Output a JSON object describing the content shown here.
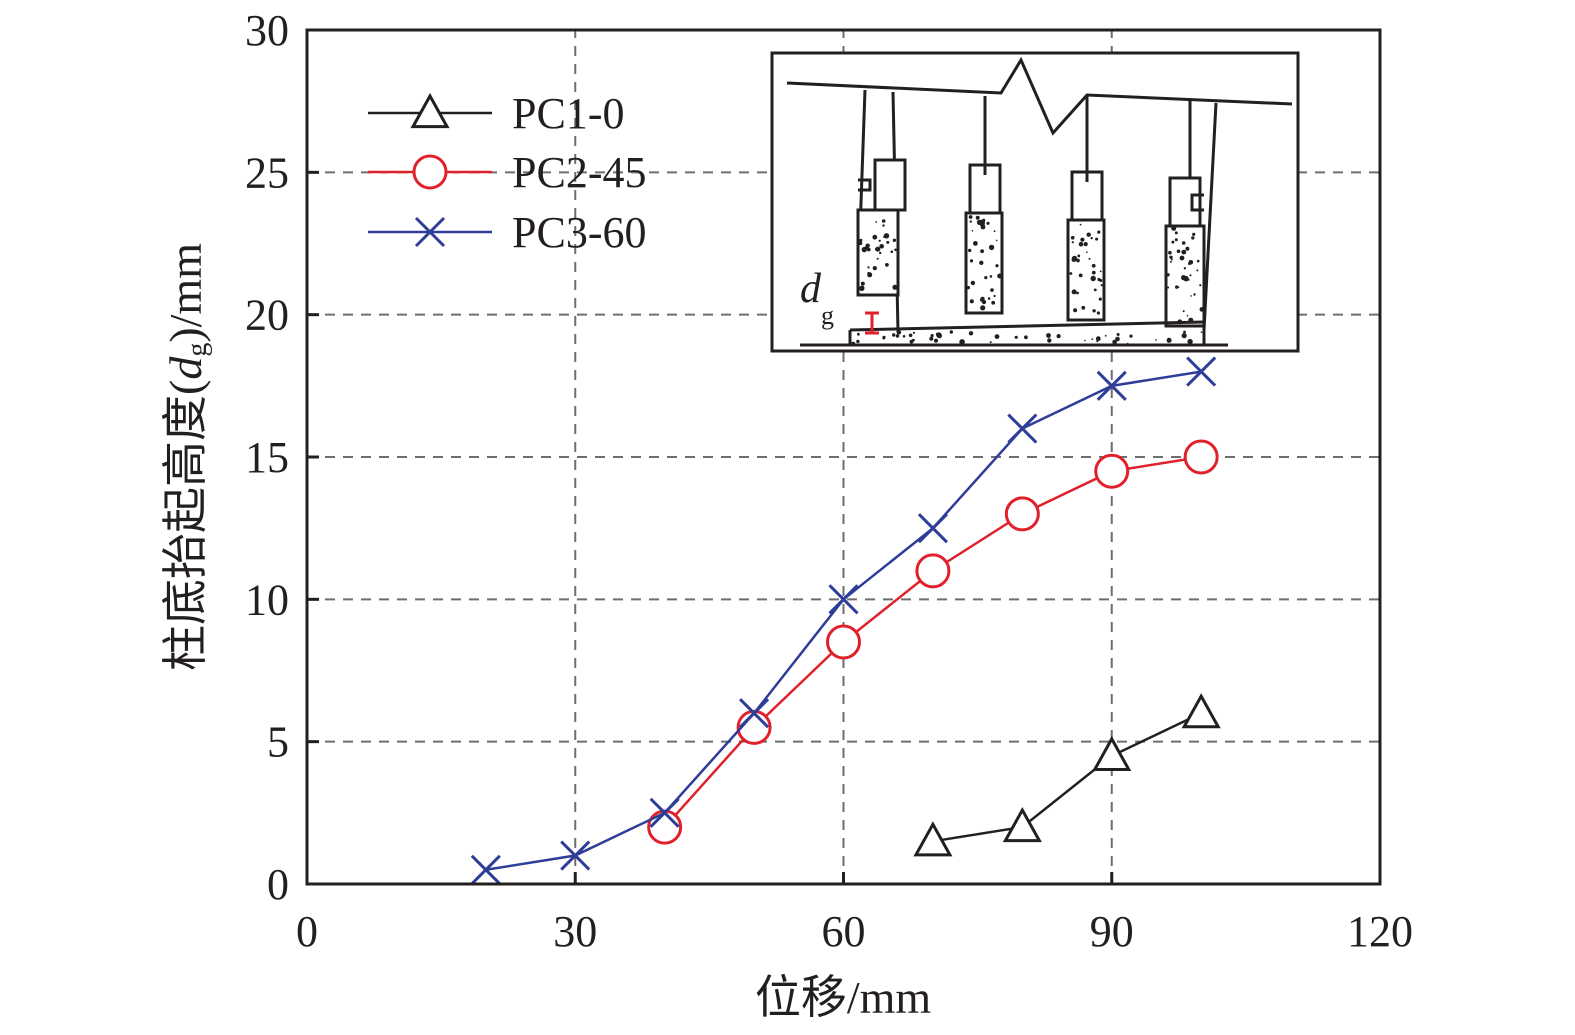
{
  "chart_data": {
    "type": "line",
    "title": "",
    "xlabel": "位移/mm",
    "ylabel": "柱底抬起高度(d_g)/mm",
    "ylabel_parts": {
      "prefix": "柱底抬起高度(",
      "var": "d",
      "sub": "g",
      "suffix": ")/mm"
    },
    "xlim": [
      0,
      120
    ],
    "ylim": [
      0,
      30
    ],
    "xticks": [
      0,
      30,
      60,
      90,
      120
    ],
    "yticks": [
      0,
      5,
      10,
      15,
      20,
      25,
      30
    ],
    "grid": true,
    "legend_position": "top-left",
    "series": [
      {
        "name": "PC1-0",
        "color": "#231f20",
        "marker": "triangle",
        "x": [
          70,
          80,
          90,
          100
        ],
        "y": [
          1.5,
          2.0,
          4.5,
          6.0
        ]
      },
      {
        "name": "PC2-45",
        "color": "#e0202a",
        "marker": "circle",
        "x": [
          40,
          50,
          60,
          70,
          80,
          90,
          100
        ],
        "y": [
          2.0,
          5.5,
          8.5,
          11.0,
          13.0,
          14.5,
          15.0
        ]
      },
      {
        "name": "PC3-60",
        "color": "#2e3d98",
        "marker": "x",
        "x": [
          20,
          30,
          40,
          50,
          60,
          70,
          80,
          90,
          100
        ],
        "y": [
          0.5,
          1.0,
          2.5,
          6.0,
          10.0,
          12.5,
          16.0,
          17.5,
          18.0
        ]
      }
    ],
    "inset": {
      "label_var": "d",
      "label_sub": "g",
      "marker_color": "#e0202a"
    }
  }
}
